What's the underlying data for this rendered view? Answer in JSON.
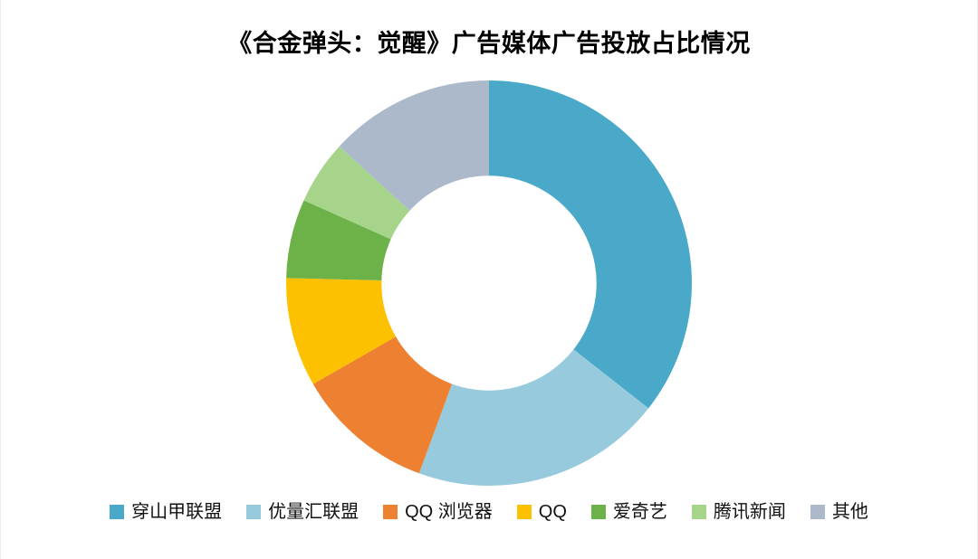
{
  "title": "《合金弹头：觉醒》广告媒体广告投放占比情况",
  "chart_data": {
    "type": "pie",
    "subtype": "donut",
    "title": "《合金弹头：觉醒》广告媒体广告投放占比情况",
    "categories": [
      "穿山甲联盟",
      "优量汇联盟",
      "QQ 浏览器",
      "QQ",
      "爱奇艺",
      "腾讯新闻",
      "其他"
    ],
    "values": [
      35.6,
      20.0,
      11.1,
      8.7,
      6.3,
      5.1,
      13.2
    ],
    "unit": "percent_estimated_from_arc_angles",
    "colors": [
      "#4AA9C9",
      "#96CADC",
      "#ED8031",
      "#FDC101",
      "#6DB249",
      "#A5D48A",
      "#ACB9CB"
    ],
    "start_angle_deg": 0,
    "direction": "clockwise",
    "inner_radius_ratio": 0.53,
    "data_labels": false,
    "legend_position": "bottom"
  },
  "legend": {
    "items": [
      {
        "label": "穿山甲联盟",
        "color": "#4AA9C9"
      },
      {
        "label": "优量汇联盟",
        "color": "#96CADC"
      },
      {
        "label": "QQ 浏览器",
        "color": "#ED8031"
      },
      {
        "label": "QQ",
        "color": "#FDC101"
      },
      {
        "label": "爱奇艺",
        "color": "#6DB249"
      },
      {
        "label": "腾讯新闻",
        "color": "#A5D48A"
      },
      {
        "label": "其他",
        "color": "#ACB9CB"
      }
    ]
  }
}
